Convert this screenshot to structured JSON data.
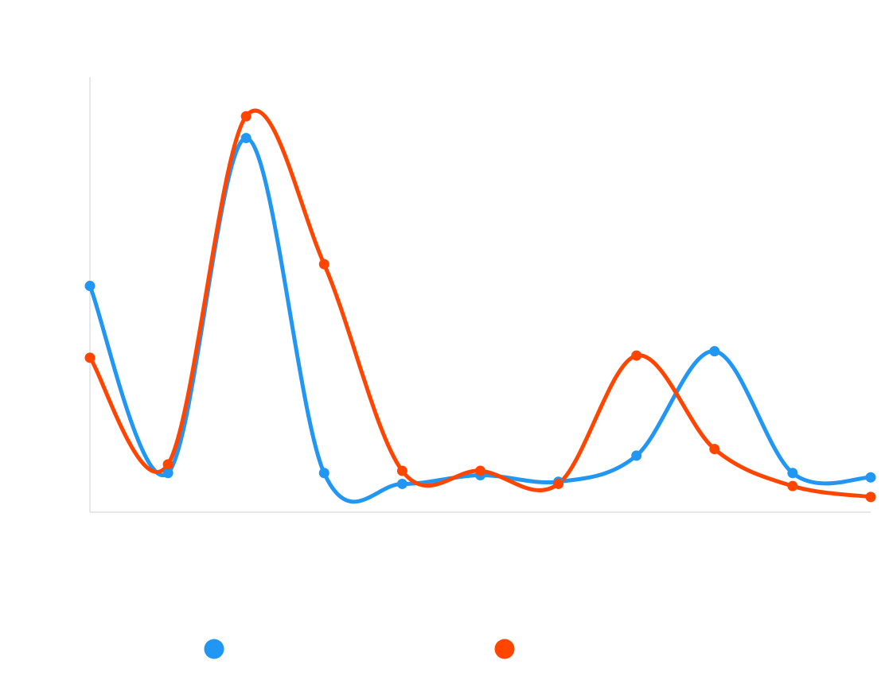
{
  "chart_data": {
    "type": "line",
    "title": "",
    "xlabel": "",
    "ylabel": "",
    "x": [
      1,
      2,
      3,
      4,
      5,
      6,
      7,
      8,
      9,
      10,
      11
    ],
    "ylim": [
      0,
      100
    ],
    "grid": false,
    "legend": "bottom",
    "series": [
      {
        "color": "#2196F3",
        "values": [
          52,
          9,
          86,
          9,
          6.5,
          8.5,
          7,
          13,
          37,
          9,
          8
        ]
      },
      {
        "color": "#FF4500",
        "values": [
          35.5,
          11,
          91,
          57,
          9.5,
          9.5,
          6.5,
          36,
          14.5,
          6,
          3.5
        ]
      }
    ]
  }
}
